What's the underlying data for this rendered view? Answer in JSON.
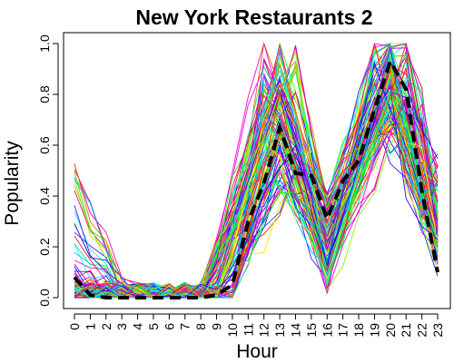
{
  "chart_data": {
    "type": "line",
    "title": "New York Restaurants 2",
    "xlabel": "Hour",
    "ylabel": "Popularity",
    "x": [
      0,
      1,
      2,
      3,
      4,
      5,
      6,
      7,
      8,
      9,
      10,
      11,
      12,
      13,
      14,
      15,
      16,
      17,
      18,
      19,
      20,
      21,
      22,
      23
    ],
    "ylim": [
      0,
      1
    ],
    "yticks": [
      "0.0",
      "0.2",
      "0.4",
      "0.6",
      "0.8",
      "1.0"
    ],
    "grid": false,
    "legend": "none",
    "background_series_count": 120,
    "mean_series": {
      "style": "dashed",
      "color": "#000000",
      "values": [
        0.08,
        0.01,
        0.0,
        0.0,
        0.0,
        0.0,
        0.0,
        0.0,
        0.0,
        0.01,
        0.05,
        0.3,
        0.45,
        0.67,
        0.49,
        0.48,
        0.31,
        0.46,
        0.54,
        0.74,
        0.93,
        0.82,
        0.42,
        0.1
      ]
    }
  }
}
